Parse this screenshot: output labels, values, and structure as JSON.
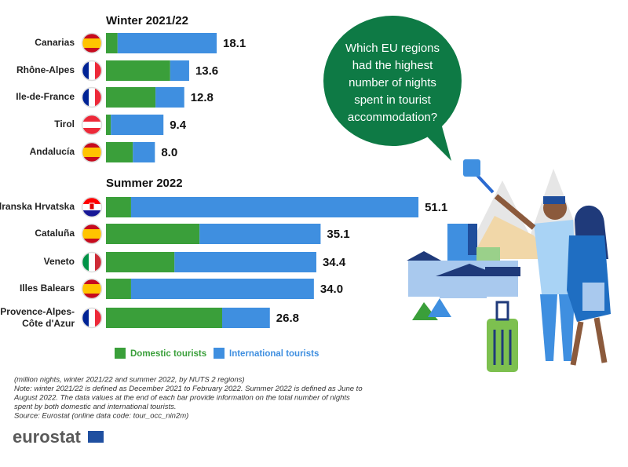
{
  "chart_data": {
    "type": "bar",
    "legend": [
      {
        "name": "Domestic tourists",
        "color": "#3a9f3a"
      },
      {
        "name": "International tourists",
        "color": "#3f8fe0"
      }
    ],
    "panels": [
      {
        "title": "Winter 2021/22",
        "categories": [
          "Canarias",
          "Rhône-Alpes",
          "Ile-de-France",
          "Tirol",
          "Andalucía"
        ],
        "series": [
          {
            "values": [
              1.9,
              10.5,
              8.1,
              0.8,
              4.4
            ]
          },
          {
            "values": [
              16.2,
              3.1,
              4.7,
              8.6,
              3.6
            ]
          }
        ],
        "totals": [
          18.1,
          13.6,
          12.8,
          9.4,
          8.0
        ],
        "value_labels": [
          "18.1",
          "13.6",
          "12.8",
          "9.4",
          "8.0"
        ]
      },
      {
        "title": "Summer 2022",
        "categories": [
          "Jadranska Hrvatska",
          "Cataluña",
          "Veneto",
          "Illes Balears",
          "Provence-Alpes-Côte d'Azur"
        ],
        "series": [
          {
            "values": [
              4.1,
              15.3,
              11.2,
              4.1,
              19.0
            ]
          },
          {
            "values": [
              47.0,
              19.8,
              23.2,
              29.9,
              7.8
            ]
          }
        ],
        "totals": [
          51.1,
          35.1,
          34.4,
          34.0,
          26.8
        ],
        "value_labels": [
          "51.1",
          "35.1",
          "34.4",
          "34.0",
          "26.8"
        ]
      }
    ]
  },
  "bubble": [
    "Which EU regions",
    "had the highest",
    "number of nights",
    "spent in tourist",
    "accommodation?"
  ],
  "notes": [
    "(million nights, winter 2021/22 and summer 2022, by NUTS 2 regions)",
    "Note: winter 2021/22 is defined as December 2021 to February 2022. Summer 2022 is defined as June to",
    "August 2022. The data values at the end of each bar provide information on the total number of nights",
    "spent by both domestic and international tourists.",
    "Source: Eurostat (online data code: tour_occ_nin2m)"
  ],
  "logo": "eurostat"
}
